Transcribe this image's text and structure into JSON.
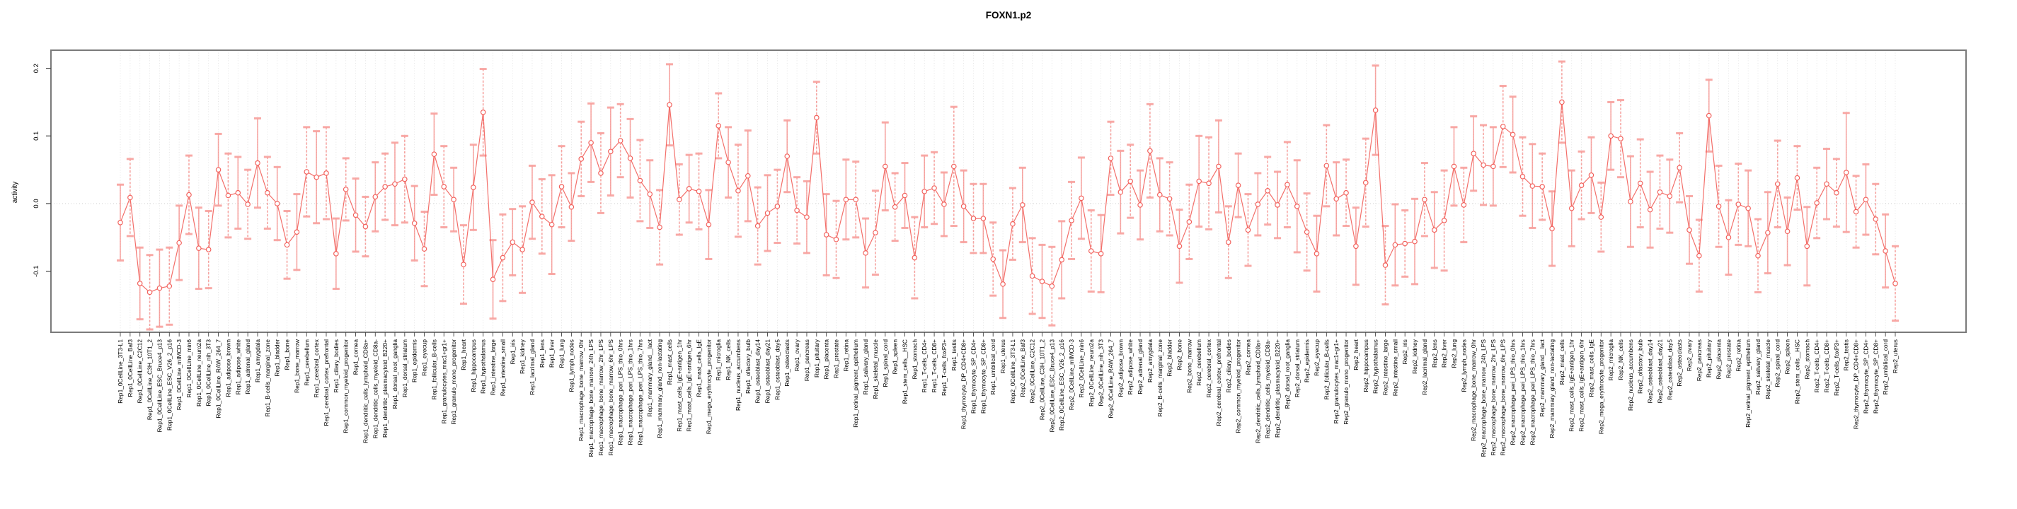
{
  "chart_data": {
    "type": "line",
    "title": "FOXN1.p2",
    "xlabel": "",
    "ylabel": "activity",
    "ylim": [
      -0.19,
      0.227
    ],
    "yticks": [
      0.2,
      0.1,
      0.0,
      -0.1
    ],
    "ytick_labels": [
      "0.2",
      "0.1",
      "0.0",
      "-0.1"
    ],
    "grid": "vertical dotted line at every category; dotted horizontal line at y=0",
    "legend": null,
    "error_bars": true,
    "colors": {
      "series": "#f25f5a",
      "cap": "#f7a09c",
      "grid": "#dedede",
      "zero_line": "#cfcfcf",
      "box": "#7a7a7a",
      "text": "#000000"
    },
    "categories": [
      "Rep1_0CellLine_3T3-L1",
      "Rep1_0CellLine_Baf3",
      "Rep1_0CellLine_C2C12",
      "Rep1_0CellLine_C3H_10T1_2",
      "Rep1_0CellLine_ESC_Bruce4_p13",
      "Rep1_0CellLine_ESC_V26_2_p16",
      "Rep1_0CellLine_mIMCD-3",
      "Rep1_0CellLine_min6",
      "Rep1_0CellLine_neuro2a",
      "Rep1_0CellLine_nih_3T3",
      "Rep1_0CellLine_RAW_264_7",
      "Rep1_adipose_brown",
      "Rep1_adipose_white",
      "Rep1_adrenal_gland",
      "Rep1_amygdala",
      "Rep1_B-cells_marginal_zone",
      "Rep1_bladder",
      "Rep1_bone",
      "Rep1_bone_marrow",
      "Rep1_cerebellum",
      "Rep1_cerebral_cortex",
      "Rep1_cerebral_cortex_prefrontal",
      "Rep1_ciliary_bodies",
      "Rep1_common_myeloid_progenitor",
      "Rep1_cornea",
      "Rep1_dendritic_cells_lymphoid_CD8a+",
      "Rep1_dendritic_cells_myeloid_CD8a-",
      "Rep1_dendritic_plasmacytoid_B220+",
      "Rep1_dorsal_root_ganglia",
      "Rep1_dorsal_striatum",
      "Rep1_epidermis",
      "Rep1_eyecup",
      "Rep1_follicular_B-cells",
      "Rep1_granulocytes_mac1+gr1+",
      "Rep1_granulo_mono_progenitor",
      "Rep1_heart",
      "Rep1_hippocampus",
      "Rep1_hypothalamus",
      "Rep1_intestine_large",
      "Rep1_intestine_small",
      "Rep1_iris",
      "Rep1_kidney",
      "Rep1_lacrimal_gland",
      "Rep1_lens",
      "Rep1_liver",
      "Rep1_lung",
      "Rep1_lymph_nodes",
      "Rep1_macrophage_bone_marrow_0hr",
      "Rep1_macrophage_bone_marrow_24h_LPS",
      "Rep1_macrophage_bone_marrow_2hr_LPS",
      "Rep1_macrophage_bone_marrow_6hr_LPS",
      "Rep1_macrophage_peri_LPS_thio_0hrs",
      "Rep1_macrophage_peri_LPS_thio_1hrs",
      "Rep1_macrophage_peri_LPS_thio_7hrs",
      "Rep1_mammary_gland__lact",
      "Rep1_mammary_gland_non-lactating",
      "Rep1_mast_cells",
      "Rep1_mast_cells_IgE+antigen_1hr",
      "Rep1_mast_cells_IgE+antigen_6hr",
      "Rep1_mast_cells_IgE",
      "Rep1_mega_erythrocyte_progenitor",
      "Rep1_microglia",
      "Rep1_NK_cells",
      "Rep1_nucleus_accumbens",
      "Rep1_olfactory_bulb",
      "Rep1_osteoblast_day14",
      "Rep1_osteoblast_day21",
      "Rep1_osteoblast_day5",
      "Rep1_osteoclasts",
      "Rep1_ovary",
      "Rep1_pancreas",
      "Rep1_pituitary",
      "Rep1_placenta",
      "Rep1_prostate",
      "Rep1_retina",
      "Rep1_retinal_pigment_epithelium",
      "Rep1_salivary_gland",
      "Rep1_skeletal_muscle",
      "Rep1_spinal_cord",
      "Rep1_spleen",
      "Rep1_stem_cells__HSC",
      "Rep1_stomach",
      "Rep1_T-cells_CD4+",
      "Rep1_T-cells_CD8+",
      "Rep1_T-cells_foxP3+",
      "Rep1_testis",
      "Rep1_thymocyte_DP_CD4+CD8+",
      "Rep1_thymocyte_SP_CD4+",
      "Rep1_thymocyte_SP_CD8+",
      "Rep1_umbilical_cord",
      "Rep1_uterus",
      "Rep2_0CellLine_3T3-L1",
      "Rep2_0CellLine_Baf3",
      "Rep2_0CellLine_C2C12",
      "Rep2_0CellLine_C3H_10T1_2",
      "Rep2_0CellLine_ESC_Bruce4_p13",
      "Rep2_0CellLine_ESC_V26_2_p16",
      "Rep2_0CellLine_mIMCD-3",
      "Rep2_0CellLine_min6",
      "Rep2_0CellLine_neuro2a",
      "Rep2_0CellLine_nih_3T3",
      "Rep2_0CellLine_RAW_264_7",
      "Rep2_adipose_brown",
      "Rep2_adipose_white",
      "Rep2_adrenal_gland",
      "Rep2_amygdala",
      "Rep2_B-cells_marginal_zone",
      "Rep2_bladder",
      "Rep2_bone",
      "Rep2_bone_marrow",
      "Rep2_cerebellum",
      "Rep2_cerebral_cortex",
      "Rep2_cerebral_cortex_prefrontal",
      "Rep2_ciliary_bodies",
      "Rep2_common_myeloid_progenitor",
      "Rep2_cornea",
      "Rep2_dendritic_cells_lymphoid_CD8a+",
      "Rep2_dendritic_cells_myeloid_CD8a-",
      "Rep2_dendritic_plasmacytoid_B220+",
      "Rep2_dorsal_root_ganglia",
      "Rep2_dorsal_striatum",
      "Rep2_epidermis",
      "Rep2_eyecup",
      "Rep2_follicular_B-cells",
      "Rep2_granulocytes_mac1+gr1+",
      "Rep2_granulo_mono_progenitor",
      "Rep2_heart",
      "Rep2_hippocampus",
      "Rep2_hypothalamus",
      "Rep2_intestine_large",
      "Rep2_intestine_small",
      "Rep2_iris",
      "Rep2_kidney",
      "Rep2_lacrimal_gland",
      "Rep2_lens",
      "Rep2_liver",
      "Rep2_lung",
      "Rep2_lymph_nodes",
      "Rep2_macrophage_bone_marrow_0hr",
      "Rep2_macrophage_bone_marrow_24h_LPS",
      "Rep2_macrophage_bone_marrow_2hr_LPS",
      "Rep2_macrophage_bone_marrow_6hr_LPS",
      "Rep2_macrophage_peri_LPS_thio_0hrs",
      "Rep2_macrophage_peri_LPS_thio_1hrs",
      "Rep2_macrophage_peri_LPS_thio_7hrs",
      "Rep2_mammary_gland__lact",
      "Rep2_mammary_gland_non-lactating",
      "Rep2_mast_cells",
      "Rep2_mast_cells_IgE+antigen_1hr",
      "Rep2_mast_cells_IgE+antigen_6hr",
      "Rep2_mast_cells_IgE",
      "Rep2_mega_erythrocyte_progenitor",
      "Rep2_microglia",
      "Rep2_NK_cells",
      "Rep2_nucleus_accumbens",
      "Rep2_olfactory_bulb",
      "Rep2_osteoblast_day14",
      "Rep2_osteoblast_day21",
      "Rep2_osteoblast_day5",
      "Rep2_osteoclasts",
      "Rep2_ovary",
      "Rep2_pancreas",
      "Rep2_pituitary",
      "Rep2_placenta",
      "Rep2_prostate",
      "Rep2_retina",
      "Rep2_retinal_pigment_epithelium",
      "Rep2_salivary_gland",
      "Rep2_skeletal_muscle",
      "Rep2_spinal_cord",
      "Rep2_spleen",
      "Rep2_stem_cells__HSC",
      "Rep2_stomach",
      "Rep2_T-cells_CD4+",
      "Rep2_T-cells_CD8+",
      "Rep2_T-cells_foxP3+",
      "Rep2_testis",
      "Rep2_thymocyte_DP_CD4+CD8+",
      "Rep2_thymocyte_SP_CD4+",
      "Rep2_thymocyte_SP_CD8+",
      "Rep2_umbilical_cord",
      "Rep2_uterus"
    ],
    "values": [
      -0.028,
      0.009,
      -0.118,
      -0.131,
      -0.125,
      -0.122,
      -0.058,
      0.013,
      -0.066,
      -0.068,
      0.05,
      0.012,
      0.016,
      -0.001,
      0.06,
      0.016,
      0.0,
      -0.061,
      -0.042,
      0.047,
      0.039,
      0.045,
      -0.074,
      0.021,
      -0.017,
      -0.034,
      0.01,
      0.025,
      0.029,
      0.036,
      -0.029,
      -0.067,
      0.073,
      0.025,
      0.006,
      -0.09,
      0.024,
      0.135,
      -0.112,
      -0.08,
      -0.057,
      -0.068,
      0.002,
      -0.019,
      -0.031,
      0.025,
      -0.005,
      0.066,
      0.09,
      0.045,
      0.077,
      0.093,
      0.067,
      0.034,
      0.014,
      -0.035,
      0.146,
      0.006,
      0.022,
      0.018,
      -0.031,
      0.115,
      0.061,
      0.019,
      0.041,
      -0.033,
      -0.014,
      -0.004,
      0.07,
      -0.01,
      -0.02,
      0.127,
      -0.046,
      -0.053,
      0.006,
      0.006,
      -0.073,
      -0.043,
      0.055,
      -0.005,
      0.012,
      -0.08,
      0.018,
      0.023,
      -0.001,
      0.055,
      -0.004,
      -0.022,
      -0.022,
      -0.082,
      -0.119,
      -0.03,
      -0.002,
      -0.107,
      -0.115,
      -0.122,
      -0.083,
      -0.025,
      0.008,
      -0.07,
      -0.074,
      0.067,
      0.017,
      0.033,
      -0.002,
      0.078,
      0.013,
      0.007,
      -0.063,
      -0.027,
      0.033,
      0.03,
      0.055,
      -0.057,
      0.027,
      -0.039,
      -0.001,
      0.019,
      -0.002,
      0.028,
      -0.004,
      -0.042,
      -0.074,
      0.056,
      0.007,
      0.016,
      -0.063,
      0.031,
      0.138,
      -0.091,
      -0.061,
      -0.059,
      -0.056,
      0.006,
      -0.039,
      -0.025,
      0.055,
      -0.002,
      0.074,
      0.057,
      0.055,
      0.114,
      0.102,
      0.04,
      0.026,
      0.025,
      -0.037,
      0.15,
      -0.007,
      0.027,
      0.042,
      -0.02,
      0.1,
      0.096,
      0.003,
      0.03,
      -0.009,
      0.017,
      0.011,
      0.053,
      -0.039,
      -0.077,
      0.13,
      -0.004,
      -0.05,
      -0.001,
      -0.007,
      -0.077,
      -0.043,
      0.029,
      -0.041,
      0.038,
      -0.063,
      0.001,
      0.029,
      0.016,
      0.046,
      -0.012,
      0.006,
      -0.023,
      -0.07,
      -0.118
    ],
    "errors": [
      0.056,
      0.057,
      0.053,
      0.055,
      0.057,
      0.057,
      0.055,
      0.058,
      0.06,
      0.057,
      0.053,
      0.062,
      0.053,
      0.051,
      0.066,
      0.053,
      0.054,
      0.05,
      0.056,
      0.066,
      0.068,
      0.068,
      0.052,
      0.046,
      0.054,
      0.044,
      0.051,
      0.049,
      0.061,
      0.064,
      0.055,
      0.055,
      0.06,
      0.06,
      0.047,
      0.058,
      0.063,
      0.064,
      0.058,
      0.064,
      0.049,
      0.064,
      0.054,
      0.055,
      0.073,
      0.06,
      0.05,
      0.055,
      0.058,
      0.059,
      0.065,
      0.054,
      0.058,
      0.06,
      0.05,
      0.055,
      0.06,
      0.052,
      0.05,
      0.056,
      0.051,
      0.048,
      0.052,
      0.068,
      0.067,
      0.057,
      0.056,
      0.054,
      0.053,
      0.049,
      0.053,
      0.053,
      0.06,
      0.057,
      0.059,
      0.056,
      0.051,
      0.062,
      0.065,
      0.05,
      0.048,
      0.06,
      0.053,
      0.053,
      0.047,
      0.088,
      0.053,
      0.051,
      0.051,
      0.054,
      0.05,
      0.053,
      0.055,
      0.056,
      0.054,
      0.058,
      0.057,
      0.057,
      0.06,
      0.06,
      0.057,
      0.054,
      0.061,
      0.054,
      0.051,
      0.069,
      0.054,
      0.054,
      0.054,
      0.055,
      0.067,
      0.068,
      0.068,
      0.053,
      0.047,
      0.053,
      0.046,
      0.05,
      0.049,
      0.063,
      0.068,
      0.057,
      0.056,
      0.06,
      0.054,
      0.049,
      0.057,
      0.065,
      0.066,
      0.058,
      0.06,
      0.049,
      0.063,
      0.054,
      0.056,
      0.074,
      0.058,
      0.055,
      0.055,
      0.059,
      0.058,
      0.06,
      0.056,
      0.058,
      0.062,
      0.049,
      0.055,
      0.06,
      0.056,
      0.05,
      0.056,
      0.051,
      0.05,
      0.057,
      0.067,
      0.065,
      0.056,
      0.054,
      0.054,
      0.051,
      0.05,
      0.053,
      0.053,
      0.06,
      0.055,
      0.06,
      0.056,
      0.054,
      0.06,
      0.064,
      0.05,
      0.047,
      0.058,
      0.052,
      0.052,
      0.05,
      0.088,
      0.053,
      0.052,
      0.052,
      0.054,
      0.055
    ]
  }
}
